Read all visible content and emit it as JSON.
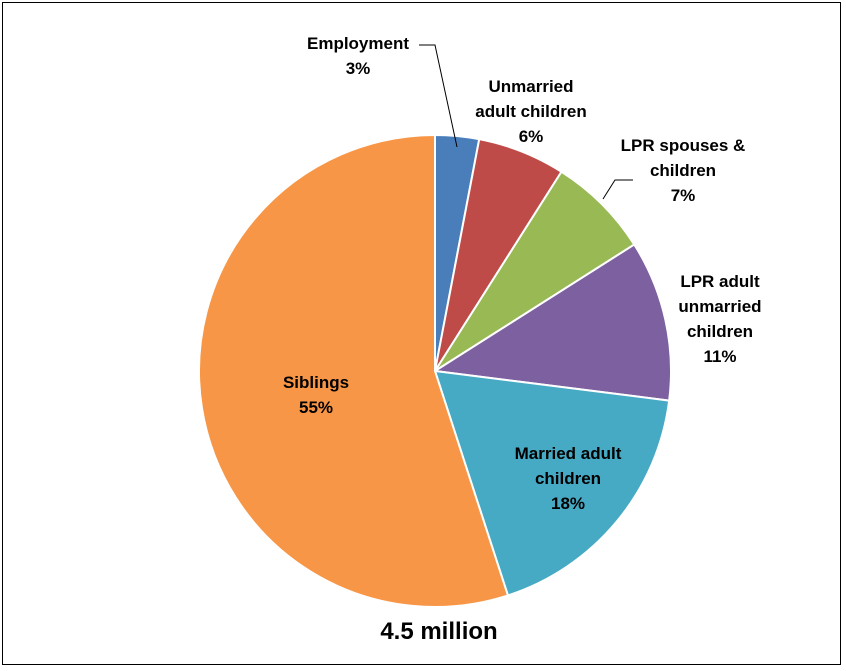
{
  "chart_data": {
    "type": "pie",
    "title": "",
    "caption": "4.5 million",
    "start_angle_deg": 0,
    "direction": "clockwise",
    "legend": "none",
    "slices": [
      {
        "label_lines": [
          "Employment"
        ],
        "value": 3,
        "value_label": "3%",
        "color": "#4A7EBB",
        "label_side": "outside"
      },
      {
        "label_lines": [
          "Unmarried",
          "adult children"
        ],
        "value": 6,
        "value_label": "6%",
        "color": "#BE4B48",
        "label_side": "outside"
      },
      {
        "label_lines": [
          "LPR spouses &",
          "children"
        ],
        "value": 7,
        "value_label": "7%",
        "color": "#98B954",
        "label_side": "outside"
      },
      {
        "label_lines": [
          "LPR adult",
          "unmarried",
          "children"
        ],
        "value": 11,
        "value_label": "11%",
        "color": "#7D60A0",
        "label_side": "outside"
      },
      {
        "label_lines": [
          "Married adult",
          "children"
        ],
        "value": 18,
        "value_label": "18%",
        "color": "#46AAC4",
        "label_side": "inside"
      },
      {
        "label_lines": [
          "Siblings"
        ],
        "value": 55,
        "value_label": "55%",
        "color": "#F79646",
        "label_side": "inside"
      }
    ]
  }
}
